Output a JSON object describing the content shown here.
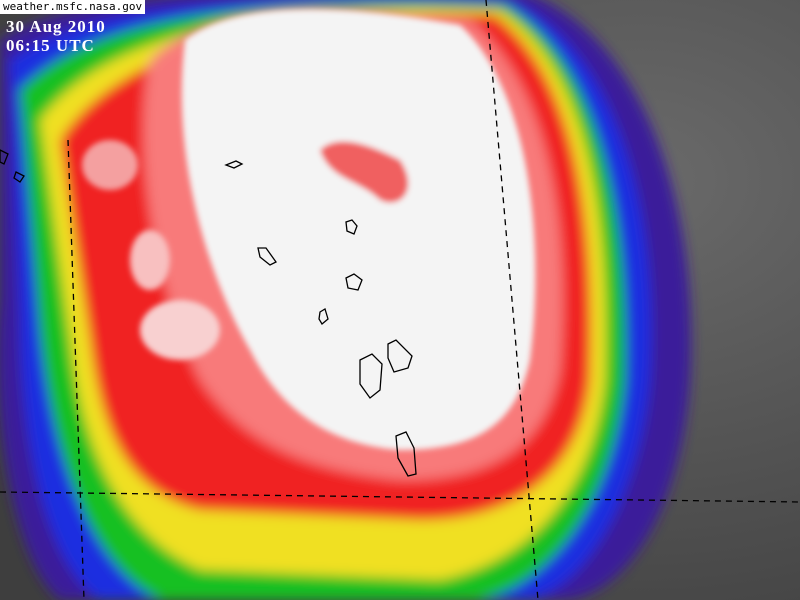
{
  "header": {
    "source": "weather.msfc.nasa.gov",
    "date": "30 Aug 2010",
    "time": "06:15 UTC"
  }
}
